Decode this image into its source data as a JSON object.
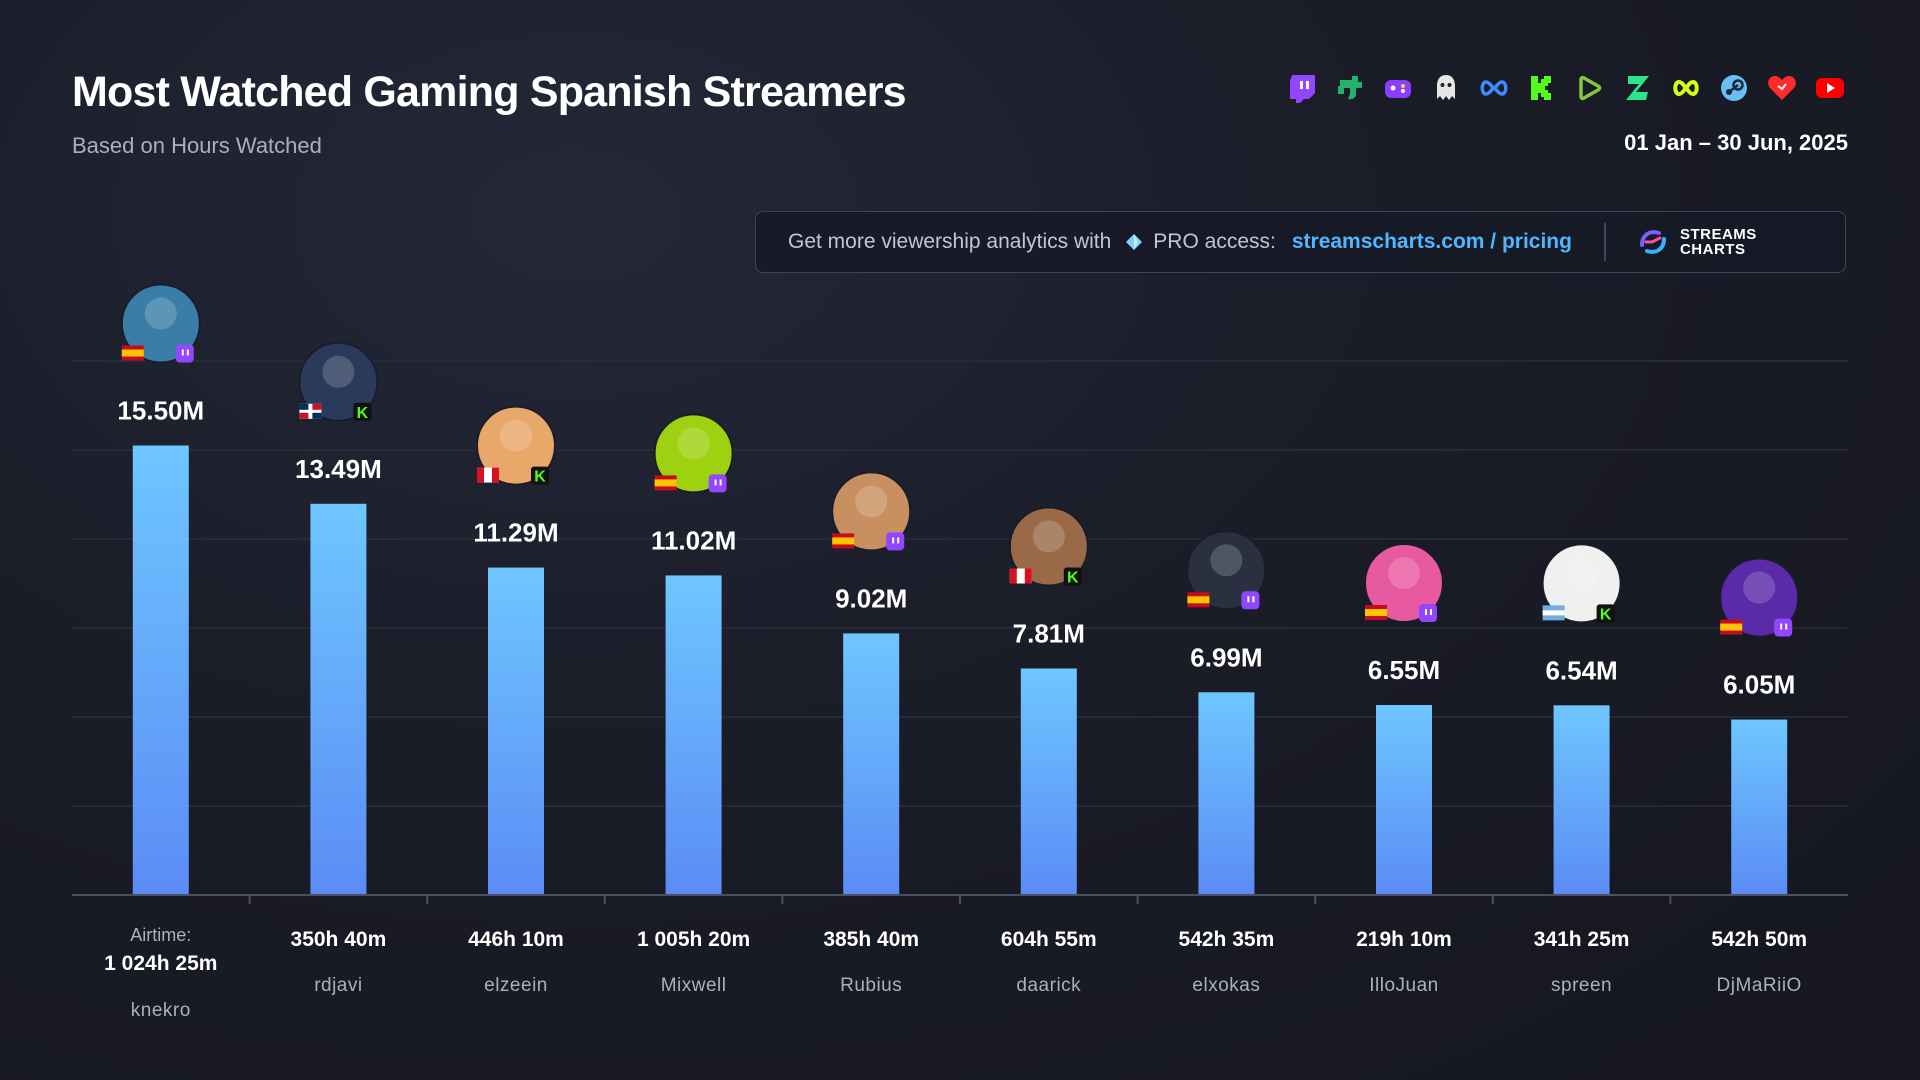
{
  "header": {
    "title": "Most Watched Gaming Spanish Streamers",
    "subtitle": "Based on Hours Watched",
    "date_range": "01 Jan – 30 Jun, 2025"
  },
  "platforms": [
    {
      "name": "twitch-icon",
      "color": "#9146ff"
    },
    {
      "name": "trovo-icon",
      "color": "#21b36c"
    },
    {
      "name": "gameroom-icon",
      "color": "#8b3dff"
    },
    {
      "name": "ghost-platform-icon",
      "color": "#e6e6e6"
    },
    {
      "name": "infinity-platform-icon",
      "color": "#3a8cff"
    },
    {
      "name": "kick-icon",
      "color": "#53fc18"
    },
    {
      "name": "rumble-icon",
      "color": "#85c742"
    },
    {
      "name": "zap-platform-icon",
      "color": "#2ee68a"
    },
    {
      "name": "loop-platform-icon",
      "color": "#d6ff1a"
    },
    {
      "name": "steam-icon",
      "color": "#66c0f4"
    },
    {
      "name": "heart-platform-icon",
      "color": "#ff2a2a"
    },
    {
      "name": "youtube-icon",
      "color": "#ff0000"
    }
  ],
  "promo": {
    "text": "Get more viewership analytics with",
    "pro": "PRO access:",
    "link": "streamscharts.com / pricing",
    "logo_line1": "STREAMS",
    "logo_line2": "CHARTS"
  },
  "chart_data": {
    "type": "bar",
    "title": "Most Watched Gaming Spanish Streamers",
    "subtitle": "Based on Hours Watched",
    "categories": [
      "knekro",
      "rdjavi",
      "elzeein",
      "Mixwell",
      "Rubius",
      "daarick",
      "elxokas",
      "IlloJuan",
      "spreen",
      "DjMaRiiO"
    ],
    "values": [
      15.5,
      13.49,
      11.29,
      11.02,
      9.02,
      7.81,
      6.99,
      6.55,
      6.54,
      6.05
    ],
    "value_labels": [
      "15.50M",
      "13.49M",
      "11.29M",
      "11.02M",
      "9.02M",
      "7.81M",
      "6.99M",
      "6.55M",
      "6.54M",
      "6.05M"
    ],
    "unit": "M hours watched",
    "airtime_label": "Airtime:",
    "airtime": [
      "1 024h 25m",
      "350h 40m",
      "446h 10m",
      "1 005h 20m",
      "385h 40m",
      "604h 55m",
      "542h 35m",
      "219h 10m",
      "341h 25m",
      "542h 50m"
    ],
    "platform": [
      "twitch",
      "kick",
      "kick",
      "twitch",
      "twitch",
      "kick",
      "twitch",
      "twitch",
      "kick",
      "twitch"
    ],
    "country": [
      "es",
      "do",
      "pe",
      "es",
      "es",
      "pe",
      "es",
      "es",
      "ar",
      "es"
    ],
    "avatar_colors": [
      "#3a7ea8",
      "#2a3a5a",
      "#e8a86a",
      "#9ed10f",
      "#c89060",
      "#9a6a48",
      "#2a3040",
      "#e85aa0",
      "#f0f0f0",
      "#5a2aa8"
    ],
    "bar_color_top": "#6ec6ff",
    "bar_color_bottom": "#5b8cf5",
    "ylim": [
      0,
      16
    ],
    "grid": true,
    "legend": "none"
  }
}
